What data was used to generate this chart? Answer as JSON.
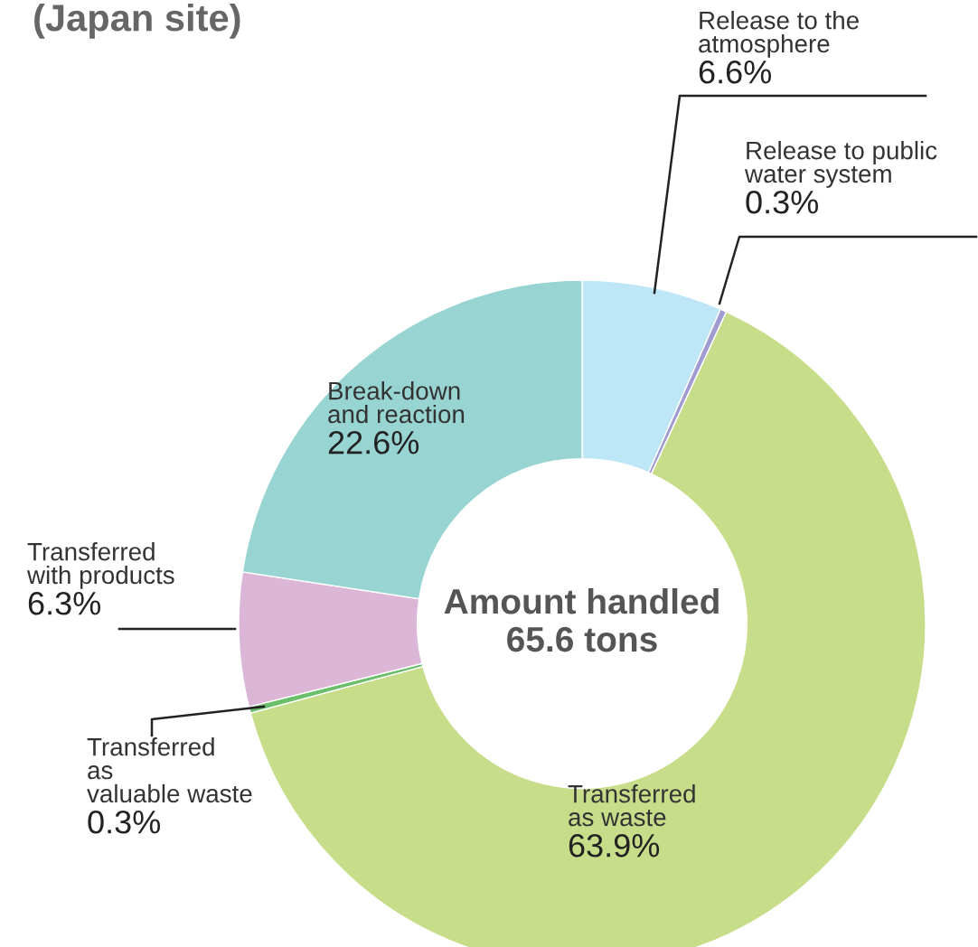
{
  "chart_data": {
    "type": "donut",
    "title": "(Japan site)",
    "categories": [
      "Release to the\natmosphere",
      "Release to public\nwater system",
      "Transferred\nas waste",
      "Transferred\nas\nvaluable waste",
      "Transferred\nwith products",
      "Break-down\nand reaction"
    ],
    "values": [
      6.6,
      0.3,
      63.9,
      0.3,
      6.3,
      22.6
    ],
    "colors": [
      "#bde6f7",
      "#a09bd0",
      "#c8dd8a",
      "#6cbf6a",
      "#dcb6d6",
      "#98d5d2"
    ],
    "value_labels": [
      "6.6%",
      "0.3%",
      "63.9%",
      "0.3%",
      "6.3%",
      "22.6%"
    ],
    "annotations": [
      "Amount handled\n65.6 tons"
    ]
  }
}
